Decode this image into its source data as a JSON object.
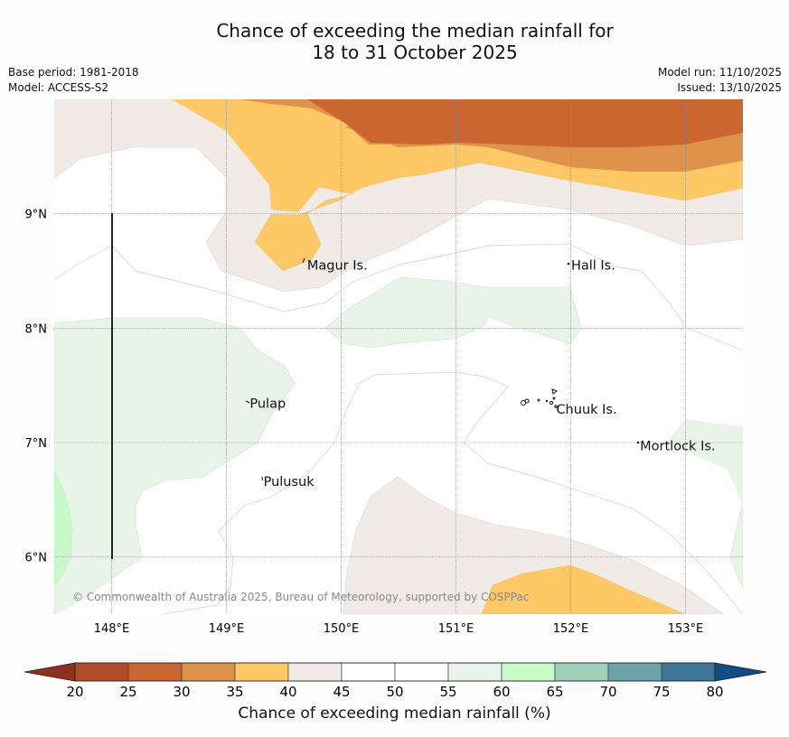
{
  "title": {
    "line1": "Chance of exceeding the median rainfall for",
    "line2": "18 to 31 October 2025"
  },
  "meta": {
    "base_period": "Base period: 1981-2018",
    "model": "Model: ACCESS-S2",
    "model_run": "Model run: 11/10/2025",
    "issued": "Issued: 13/10/2025"
  },
  "map": {
    "lon_ticks": [
      "148°E",
      "149°E",
      "150°E",
      "151°E",
      "152°E",
      "153°E"
    ],
    "lat_ticks": [
      "9°N",
      "8°N",
      "7°N",
      "6°N"
    ],
    "lon_range": [
      147.5,
      153.5
    ],
    "lat_range": [
      5.5,
      10.0
    ],
    "places": [
      {
        "name": "Magur Is.",
        "lon": 149.68,
        "lat": 8.56
      },
      {
        "name": "Hall Is.",
        "lon": 151.98,
        "lat": 8.56
      },
      {
        "name": "Pulap",
        "lon": 149.18,
        "lat": 7.35
      },
      {
        "name": "Chuuk Is.",
        "lon": 151.85,
        "lat": 7.3
      },
      {
        "name": "Mortlock Is.",
        "lon": 152.58,
        "lat": 6.98
      },
      {
        "name": "Pulusuk",
        "lon": 149.3,
        "lat": 6.67
      }
    ],
    "copyright": "© Commonwealth of Australia 2025, Bureau of Meteorology, supported by COSPPac"
  },
  "colorbar": {
    "label": "Chance of exceeding median rainfall (%)",
    "ticks": [
      "20",
      "25",
      "30",
      "35",
      "40",
      "45",
      "50",
      "55",
      "60",
      "65",
      "70",
      "75",
      "80"
    ],
    "under_color": "#8f2f1e",
    "over_color": "#134c85",
    "bins": [
      {
        "range": "20-25",
        "color": "#b04d27"
      },
      {
        "range": "25-30",
        "color": "#cb6532"
      },
      {
        "range": "30-35",
        "color": "#df9249"
      },
      {
        "range": "35-40",
        "color": "#fec864"
      },
      {
        "range": "40-45",
        "color": "#f0ebe6"
      },
      {
        "range": "45-50",
        "color": "#fefefe"
      },
      {
        "range": "50-55",
        "color": "#fefefe"
      },
      {
        "range": "55-60",
        "color": "#e8f4e8"
      },
      {
        "range": "60-65",
        "color": "#c8fac8"
      },
      {
        "range": "65-70",
        "color": "#9fd0b9"
      },
      {
        "range": "70-75",
        "color": "#6ba3a8"
      },
      {
        "range": "75-80",
        "color": "#3f7796"
      }
    ]
  }
}
